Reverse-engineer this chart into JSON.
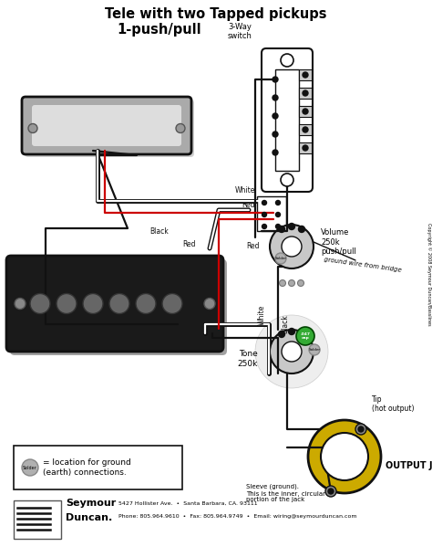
{
  "title_line1": "Tele with two Tapped pickups",
  "title_line2": "1-push/pull",
  "bg_color": "#ffffff",
  "fig_width": 4.74,
  "fig_height": 5.99,
  "wire_black": "#111111",
  "wire_red": "#cc0000",
  "volume_label": "Volume\n250k\npush/pull",
  "tone_label": "Tone\n250k",
  "ground_wire_label": "ground wire from bridge",
  "output_jack_label": "OUTPUT JACK",
  "sleeve_label": "Sleeve (ground).\nThis is the inner, circular\nportion of the jack",
  "tip_label": "Tip\n(hot output)",
  "ground_legend": "= location for ground\n(earth) connections.",
  "copyright": "Copyright © 2008 Seymour Duncan/Basslines",
  "footer_addr": "5427 Hollister Ave.  •  Santa Barbara, CA. 93111",
  "footer_phone": "Phone: 805.964.9610  •  Fax: 805.964.9749  •  Email: wiring@seymourduncan.com"
}
